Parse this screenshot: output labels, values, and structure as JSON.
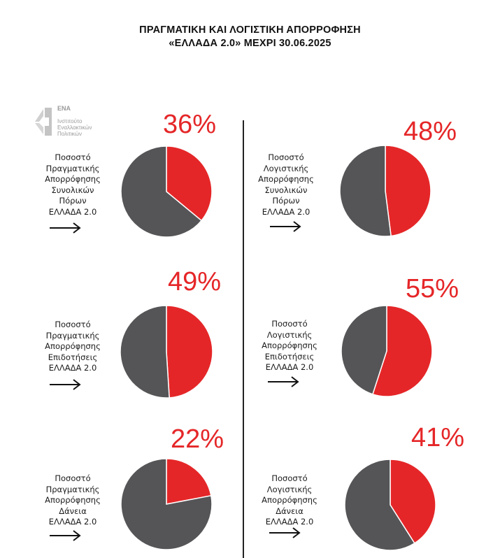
{
  "title": {
    "line1": "ΠΡΑΓΜΑΤΙΚΗ ΚΑΙ ΛΟΓΙΣΤΙΚΗ ΑΠΟΡΡΟΦΗΣΗ",
    "line2": "«ΕΛΛΑΔΑ 2.0» ΜΕΧΡΙ 30.06.2025"
  },
  "logo": {
    "name": "ΕΝΑ",
    "line1": "Ινστιτούτο",
    "line2": "Εναλλακτικών",
    "line3": "Πολιτικών"
  },
  "colors": {
    "absorbed": "#e52628",
    "remaining": "#555557"
  },
  "chart_data": [
    {
      "type": "pie",
      "label_lines": [
        "Ποσοστό",
        "Πραγματικής",
        "Απορρόφησης",
        "Συνολικών",
        "Πόρων",
        "ΕΛΛΑΔΑ 2.0"
      ],
      "percent_label": "36%",
      "values": [
        36,
        64
      ]
    },
    {
      "type": "pie",
      "label_lines": [
        "Ποσοστό",
        "Λογιστικής",
        "Απορρόφησης",
        "Συνολικών",
        "Πόρων",
        "ΕΛΛΑΔΑ 2.0"
      ],
      "percent_label": "48%",
      "values": [
        48,
        52
      ]
    },
    {
      "type": "pie",
      "label_lines": [
        "Ποσοστό",
        "Πραγματικής",
        "Απορρόφησης",
        "Επιδοτήσεις",
        "ΕΛΛΑΔΑ 2.0"
      ],
      "percent_label": "49%",
      "values": [
        49,
        51
      ]
    },
    {
      "type": "pie",
      "label_lines": [
        "Ποσοστό",
        "Λογιστικής",
        "Απορρόφησης",
        "Επιδοτήσεις",
        "ΕΛΛΑΔΑ 2.0"
      ],
      "percent_label": "55%",
      "values": [
        55,
        45
      ]
    },
    {
      "type": "pie",
      "label_lines": [
        "Ποσοστό",
        "Πραγματικής",
        "Απορρόφησης",
        "Δάνεια",
        "ΕΛΛΑΔΑ 2.0"
      ],
      "percent_label": "22%",
      "values": [
        22,
        78
      ]
    },
    {
      "type": "pie",
      "label_lines": [
        "Ποσοστό",
        "Λογιστικής",
        "Απορρόφησης",
        "Δάνεια",
        "ΕΛΛΑΔΑ 2.0"
      ],
      "percent_label": "41%",
      "values": [
        41,
        59
      ]
    }
  ]
}
